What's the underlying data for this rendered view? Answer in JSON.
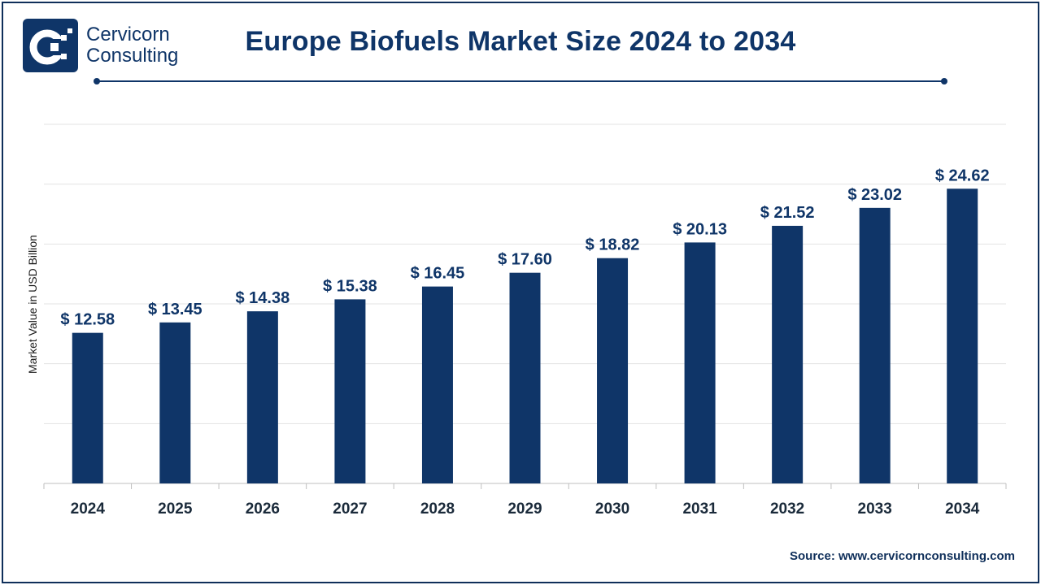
{
  "brand": {
    "line1": "Cervicorn",
    "line2": "Consulting"
  },
  "chart_data": {
    "type": "bar",
    "title": "Europe Biofuels Market Size 2024 to 2034",
    "ylabel": "Market Value in USD Billion",
    "xlabel": "",
    "categories": [
      "2024",
      "2025",
      "2026",
      "2027",
      "2028",
      "2029",
      "2030",
      "2031",
      "2032",
      "2033",
      "2034"
    ],
    "values": [
      12.58,
      13.45,
      14.38,
      15.38,
      16.45,
      17.6,
      18.82,
      20.13,
      21.52,
      23.02,
      24.62
    ],
    "value_labels": [
      "$ 12.58",
      "$ 13.45",
      "$ 14.38",
      "$ 15.38",
      "$ 16.45",
      "$ 17.60",
      "$ 18.82",
      "$ 20.13",
      "$ 21.52",
      "$ 23.02",
      "$ 24.62"
    ],
    "ylim": [
      0,
      30
    ],
    "grid": true,
    "bar_color": "#0f3568"
  },
  "source": "Source: www.cervicornconsulting.com"
}
